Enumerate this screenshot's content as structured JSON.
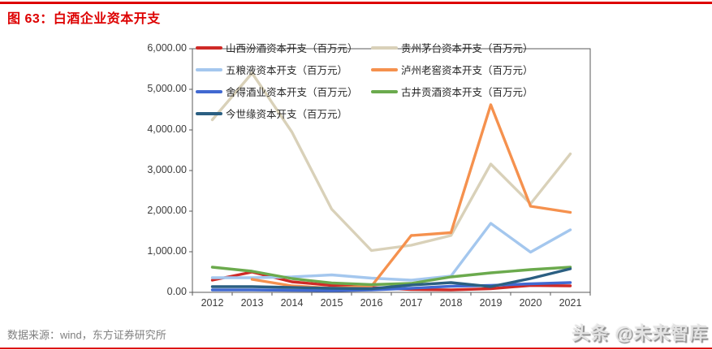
{
  "page": {
    "title": "图 63：白酒企业资本开支",
    "source_note": "数据来源：wind，东方证券研究所",
    "watermark": "头条 @未来智库",
    "accent_color": "#dd0000"
  },
  "chart_data": {
    "type": "line",
    "title": "白酒企业资本开支",
    "unit": "百万元",
    "categories": [
      "2012",
      "2013",
      "2014",
      "2015",
      "2016",
      "2017",
      "2018",
      "2019",
      "2020",
      "2021"
    ],
    "series": [
      {
        "name": "山西汾酒资本开支（百万元）",
        "color": "#cf2a27",
        "values": [
          300,
          500,
          260,
          170,
          120,
          70,
          60,
          90,
          170,
          160
        ]
      },
      {
        "name": "贵州茅台资本开支（百万元）",
        "color": "#d9d1b9",
        "values": [
          4250,
          5400,
          3950,
          2050,
          1030,
          1160,
          1400,
          3160,
          2180,
          3410
        ]
      },
      {
        "name": "五粮液资本开支（百万元）",
        "color": "#a4c7ee",
        "values": [
          360,
          360,
          380,
          430,
          350,
          300,
          400,
          1700,
          990,
          1540
        ]
      },
      {
        "name": "泸州老窖资本开支（百万元）",
        "color": "#f5914e",
        "values": [
          null,
          320,
          160,
          100,
          150,
          1400,
          1470,
          4620,
          2120,
          1970
        ]
      },
      {
        "name": "舍得酒业资本开支（百万元）",
        "color": "#4169d1",
        "values": [
          60,
          60,
          50,
          40,
          60,
          100,
          150,
          170,
          210,
          240
        ]
      },
      {
        "name": "古井贡酒资本开支（百万元）",
        "color": "#6baa4d",
        "values": [
          620,
          520,
          340,
          230,
          190,
          220,
          380,
          480,
          560,
          620
        ]
      },
      {
        "name": "今世缘资本开支（百万元）",
        "color": "#2b5f82",
        "values": [
          140,
          140,
          120,
          100,
          90,
          180,
          240,
          140,
          340,
          580
        ]
      }
    ],
    "ylim": [
      0,
      6000
    ],
    "y_ticks": [
      0,
      1000,
      2000,
      3000,
      4000,
      5000,
      6000
    ],
    "y_tick_format": "#,##0.00",
    "grid": false,
    "legend_position": "top-left-two-columns",
    "axis_color": "#595959"
  }
}
